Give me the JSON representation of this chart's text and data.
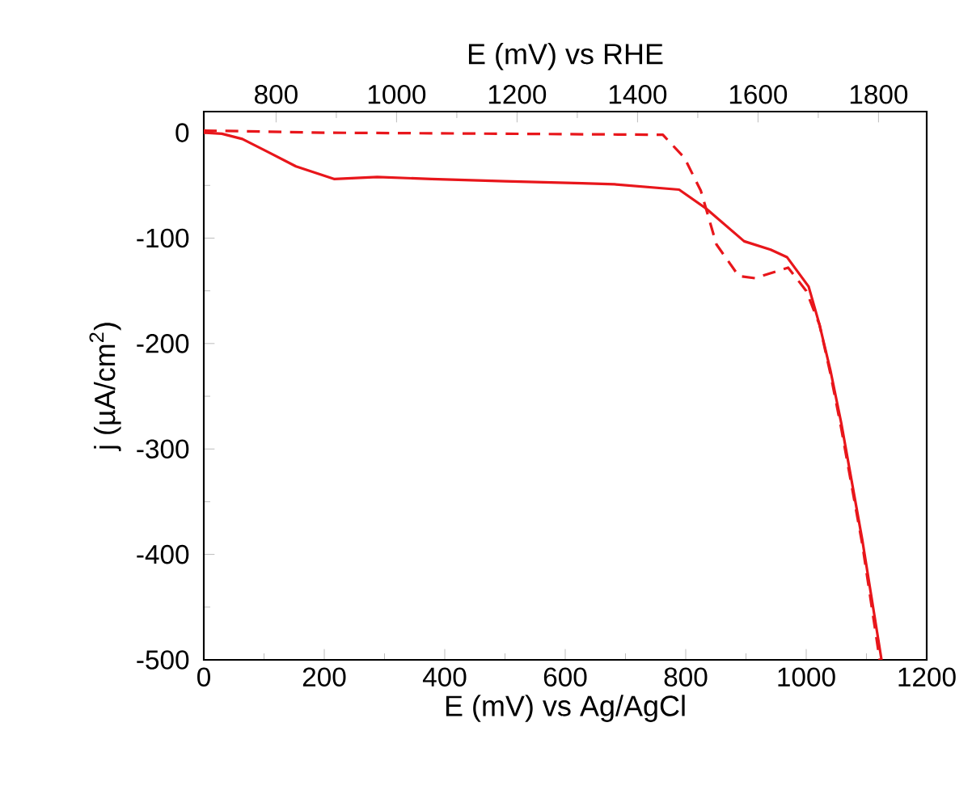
{
  "chart_data": {
    "type": "line",
    "xlabel": "E (mV) vs Ag/AgCl",
    "x2label": "E (mV) vs RHE",
    "ylabel": "j (µA/cm$^{2}$)",
    "xlim": [
      0,
      1200
    ],
    "xticks": [
      0,
      200,
      400,
      600,
      800,
      1000,
      1200
    ],
    "x2lim": [
      680,
      1880
    ],
    "x2ticks": [
      800,
      1000,
      1200,
      1400,
      1600,
      1800
    ],
    "ylim": [
      -500,
      20
    ],
    "yticks": [
      -500,
      -400,
      -300,
      -200,
      -100,
      0
    ],
    "series": [
      {
        "color": "#e8161b",
        "line_style": "solid",
        "x": [
          0,
          30,
          64,
          109,
          153,
          217,
          288,
          378,
          500,
          628,
          682,
          789,
          834,
          897,
          941,
          968,
          1004,
          1022,
          1040,
          1058,
          1093,
          1125
        ],
        "values": [
          0,
          -1,
          -6,
          -19,
          -32,
          -44,
          -42,
          -44,
          -46,
          -48,
          -49,
          -54,
          -72,
          -103,
          -111,
          -118,
          -146,
          -182,
          -225,
          -275,
          -386,
          -500
        ]
      },
      {
        "color": "#e8161b",
        "line_style": "dashed",
        "x": [
          0,
          200,
          500,
          762,
          798,
          825,
          851,
          888,
          915,
          970,
          1000,
          1022,
          1040,
          1058,
          1093,
          1122
        ],
        "values": [
          2,
          0,
          -1,
          -2,
          -24,
          -55,
          -106,
          -136,
          -138,
          -128,
          -150,
          -182,
          -228,
          -280,
          -390,
          -500
        ]
      }
    ]
  }
}
